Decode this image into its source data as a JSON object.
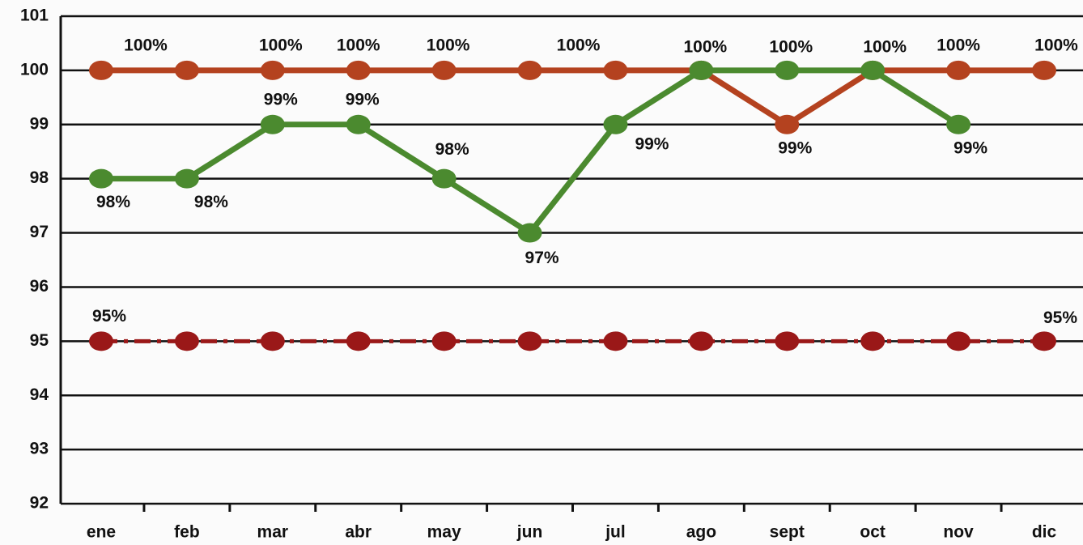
{
  "chart_data": {
    "type": "line",
    "categories": [
      "ene",
      "feb",
      "mar",
      "abr",
      "may",
      "jun",
      "jul",
      "ago",
      "sept",
      "oct",
      "nov",
      "dic"
    ],
    "series": [
      {
        "color": "#b4421f",
        "dash": false,
        "values": [
          100,
          100,
          100,
          100,
          100,
          100,
          100,
          100,
          99,
          100,
          100,
          100
        ],
        "value_labels": [
          "100%",
          null,
          "100%",
          "100%",
          "100%",
          "100%",
          null,
          null,
          "99%",
          null,
          "100%",
          "100%"
        ]
      },
      {
        "color": "#4b8a2f",
        "dash": false,
        "values": [
          98,
          98,
          99,
          99,
          98,
          97,
          99,
          100,
          100,
          100,
          99,
          null
        ],
        "value_labels": [
          "98%",
          "98%",
          "99%",
          "99%",
          "98%",
          "97%",
          "99%",
          "100%",
          "100%",
          "100%",
          "99%",
          null
        ]
      },
      {
        "color": "#9a1818",
        "dash": true,
        "values": [
          95,
          95,
          95,
          95,
          95,
          95,
          95,
          95,
          95,
          95,
          95,
          95
        ],
        "value_labels": [
          "95%",
          null,
          null,
          null,
          null,
          null,
          null,
          null,
          null,
          null,
          null,
          "95%"
        ]
      }
    ],
    "ylim": [
      92,
      101
    ],
    "yticks": [
      92,
      93,
      94,
      95,
      96,
      97,
      98,
      99,
      100,
      101
    ],
    "grid": true
  }
}
